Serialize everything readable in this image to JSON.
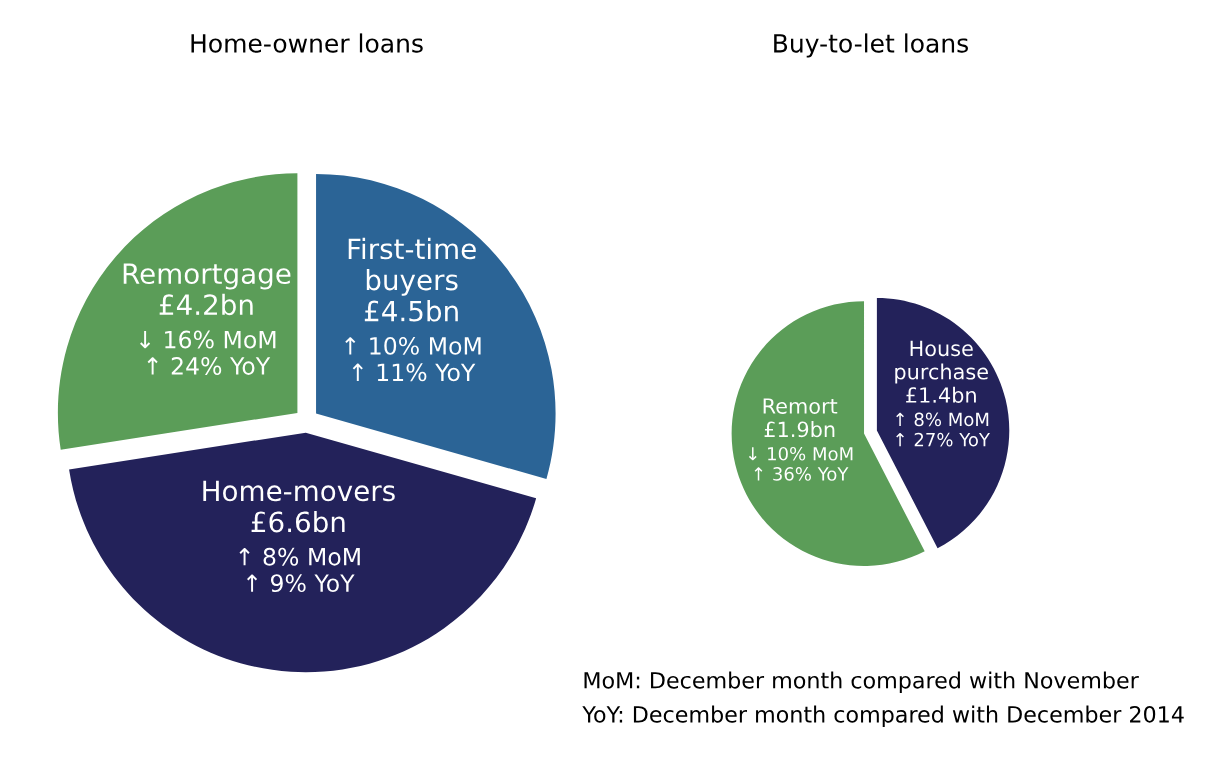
{
  "chart_data": [
    {
      "type": "pie",
      "title": "Home-owner loans",
      "categories": [
        "First-time buyers",
        "Home-movers",
        "Remortgage"
      ],
      "values": [
        4.5,
        6.6,
        4.2
      ],
      "colors": [
        "#2b6496",
        "#23225a",
        "#5b9d58"
      ],
      "value_labels": [
        "£4.5bn",
        "£6.6bn",
        "£4.2bn"
      ],
      "annotations": [
        {
          "text": "↑ 10% MoM\n↑ 11% YoY",
          "x": "First-time buyers"
        },
        {
          "text": "↑ 8% MoM\n↑ 9% YoY",
          "x": "Home-movers"
        },
        {
          "text": "↓ 16% MoM\n↑ 24% YoY",
          "x": "Remortgage"
        }
      ]
    },
    {
      "type": "pie",
      "title": "Buy-to-let loans",
      "categories": [
        "House purchase",
        "Remort"
      ],
      "values": [
        1.4,
        1.9
      ],
      "colors": [
        "#23225a",
        "#5b9d58"
      ],
      "value_labels": [
        "£1.4bn",
        "£1.9bn"
      ],
      "annotations": [
        {
          "text": "↑ 8% MoM\n↑ 27% YoY",
          "x": "House purchase"
        },
        {
          "text": "↓ 10% MoM\n↑ 36% YoY",
          "x": "Remort"
        },
        "MoM: December month compared with November",
        "YoY: December month compared with December 2014"
      ]
    }
  ]
}
